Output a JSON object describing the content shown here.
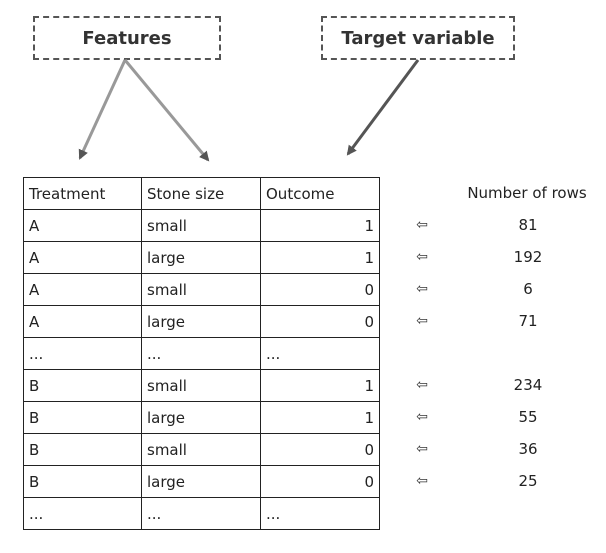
{
  "callouts": {
    "features": "Features",
    "target": "Target variable"
  },
  "table": {
    "headers": [
      "Treatment",
      "Stone size",
      "Outcome"
    ],
    "rows": [
      [
        "A",
        "small",
        "1"
      ],
      [
        "A",
        "large",
        "1"
      ],
      [
        "A",
        "small",
        "0"
      ],
      [
        "A",
        "large",
        "0"
      ],
      [
        "...",
        "...",
        "..."
      ],
      [
        "B",
        "small",
        "1"
      ],
      [
        "B",
        "large",
        "1"
      ],
      [
        "B",
        "small",
        "0"
      ],
      [
        "B",
        "large",
        "0"
      ],
      [
        "...",
        "...",
        "..."
      ]
    ]
  },
  "row_counts": {
    "header": "Number of rows",
    "arrow_glyph": "⇦",
    "counts": [
      "81",
      "192",
      "6",
      "71",
      "",
      "234",
      "55",
      "36",
      "25",
      ""
    ]
  }
}
